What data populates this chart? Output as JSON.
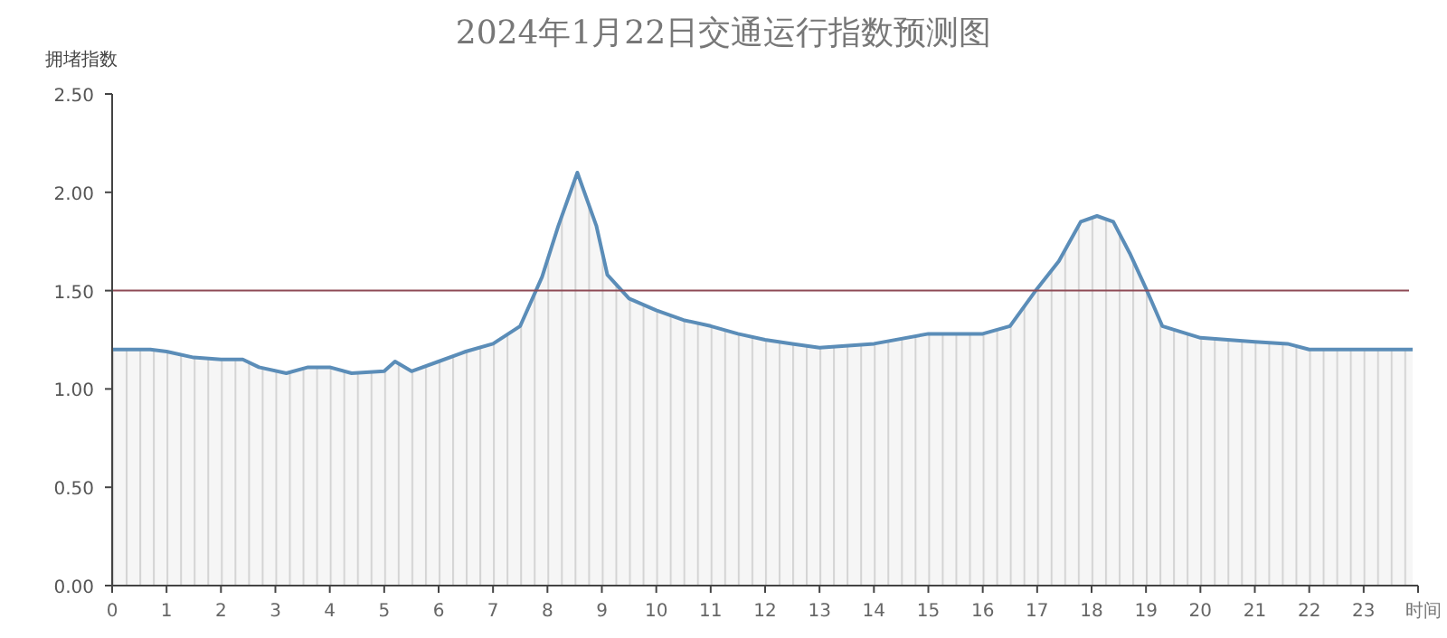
{
  "chart_data": {
    "type": "area",
    "title": "2024年1月22日交通运行指数预测图",
    "ylabel": "拥堵指数",
    "xlabel": "时间",
    "xlim": [
      0,
      24
    ],
    "xticks": [
      0,
      1,
      2,
      3,
      4,
      5,
      6,
      7,
      8,
      9,
      10,
      11,
      12,
      13,
      14,
      15,
      16,
      17,
      18,
      19,
      20,
      21,
      22,
      23
    ],
    "ylim": [
      0,
      2.5
    ],
    "yticks": [
      {
        "value": 0,
        "label": "0.00"
      },
      {
        "value": 0.5,
        "label": "0.50"
      },
      {
        "value": 1,
        "label": "1.00"
      },
      {
        "value": 1.5,
        "label": "1.50"
      },
      {
        "value": 2,
        "label": "2.00"
      },
      {
        "value": 2.5,
        "label": "2.50"
      }
    ],
    "ref_lines": [
      {
        "axis": "y",
        "value": 1.5,
        "color": "#8e4a55"
      }
    ],
    "series": [
      {
        "color": "#5b8db8",
        "x": [
          0,
          0.7,
          1,
          1.5,
          2,
          2.4,
          2.7,
          3.2,
          3.6,
          4,
          4.4,
          5,
          5.2,
          5.5,
          6,
          6.5,
          7,
          7.5,
          7.9,
          8.2,
          8.55,
          8.9,
          9.1,
          9.5,
          10,
          10.5,
          11,
          11.5,
          12,
          12.5,
          13,
          14,
          15,
          16,
          16.5,
          17,
          17.4,
          17.8,
          18.1,
          18.4,
          18.7,
          19,
          19.3,
          20,
          21,
          21.6,
          22,
          23,
          23.9
        ],
        "values": [
          1.2,
          1.2,
          1.19,
          1.16,
          1.15,
          1.15,
          1.11,
          1.08,
          1.11,
          1.11,
          1.08,
          1.09,
          1.14,
          1.09,
          1.14,
          1.19,
          1.23,
          1.32,
          1.57,
          1.83,
          2.1,
          1.83,
          1.58,
          1.46,
          1.4,
          1.35,
          1.32,
          1.28,
          1.25,
          1.23,
          1.21,
          1.23,
          1.28,
          1.28,
          1.32,
          1.51,
          1.65,
          1.85,
          1.88,
          1.85,
          1.69,
          1.51,
          1.32,
          1.26,
          1.24,
          1.23,
          1.2,
          1.2,
          1.2
        ]
      }
    ]
  }
}
